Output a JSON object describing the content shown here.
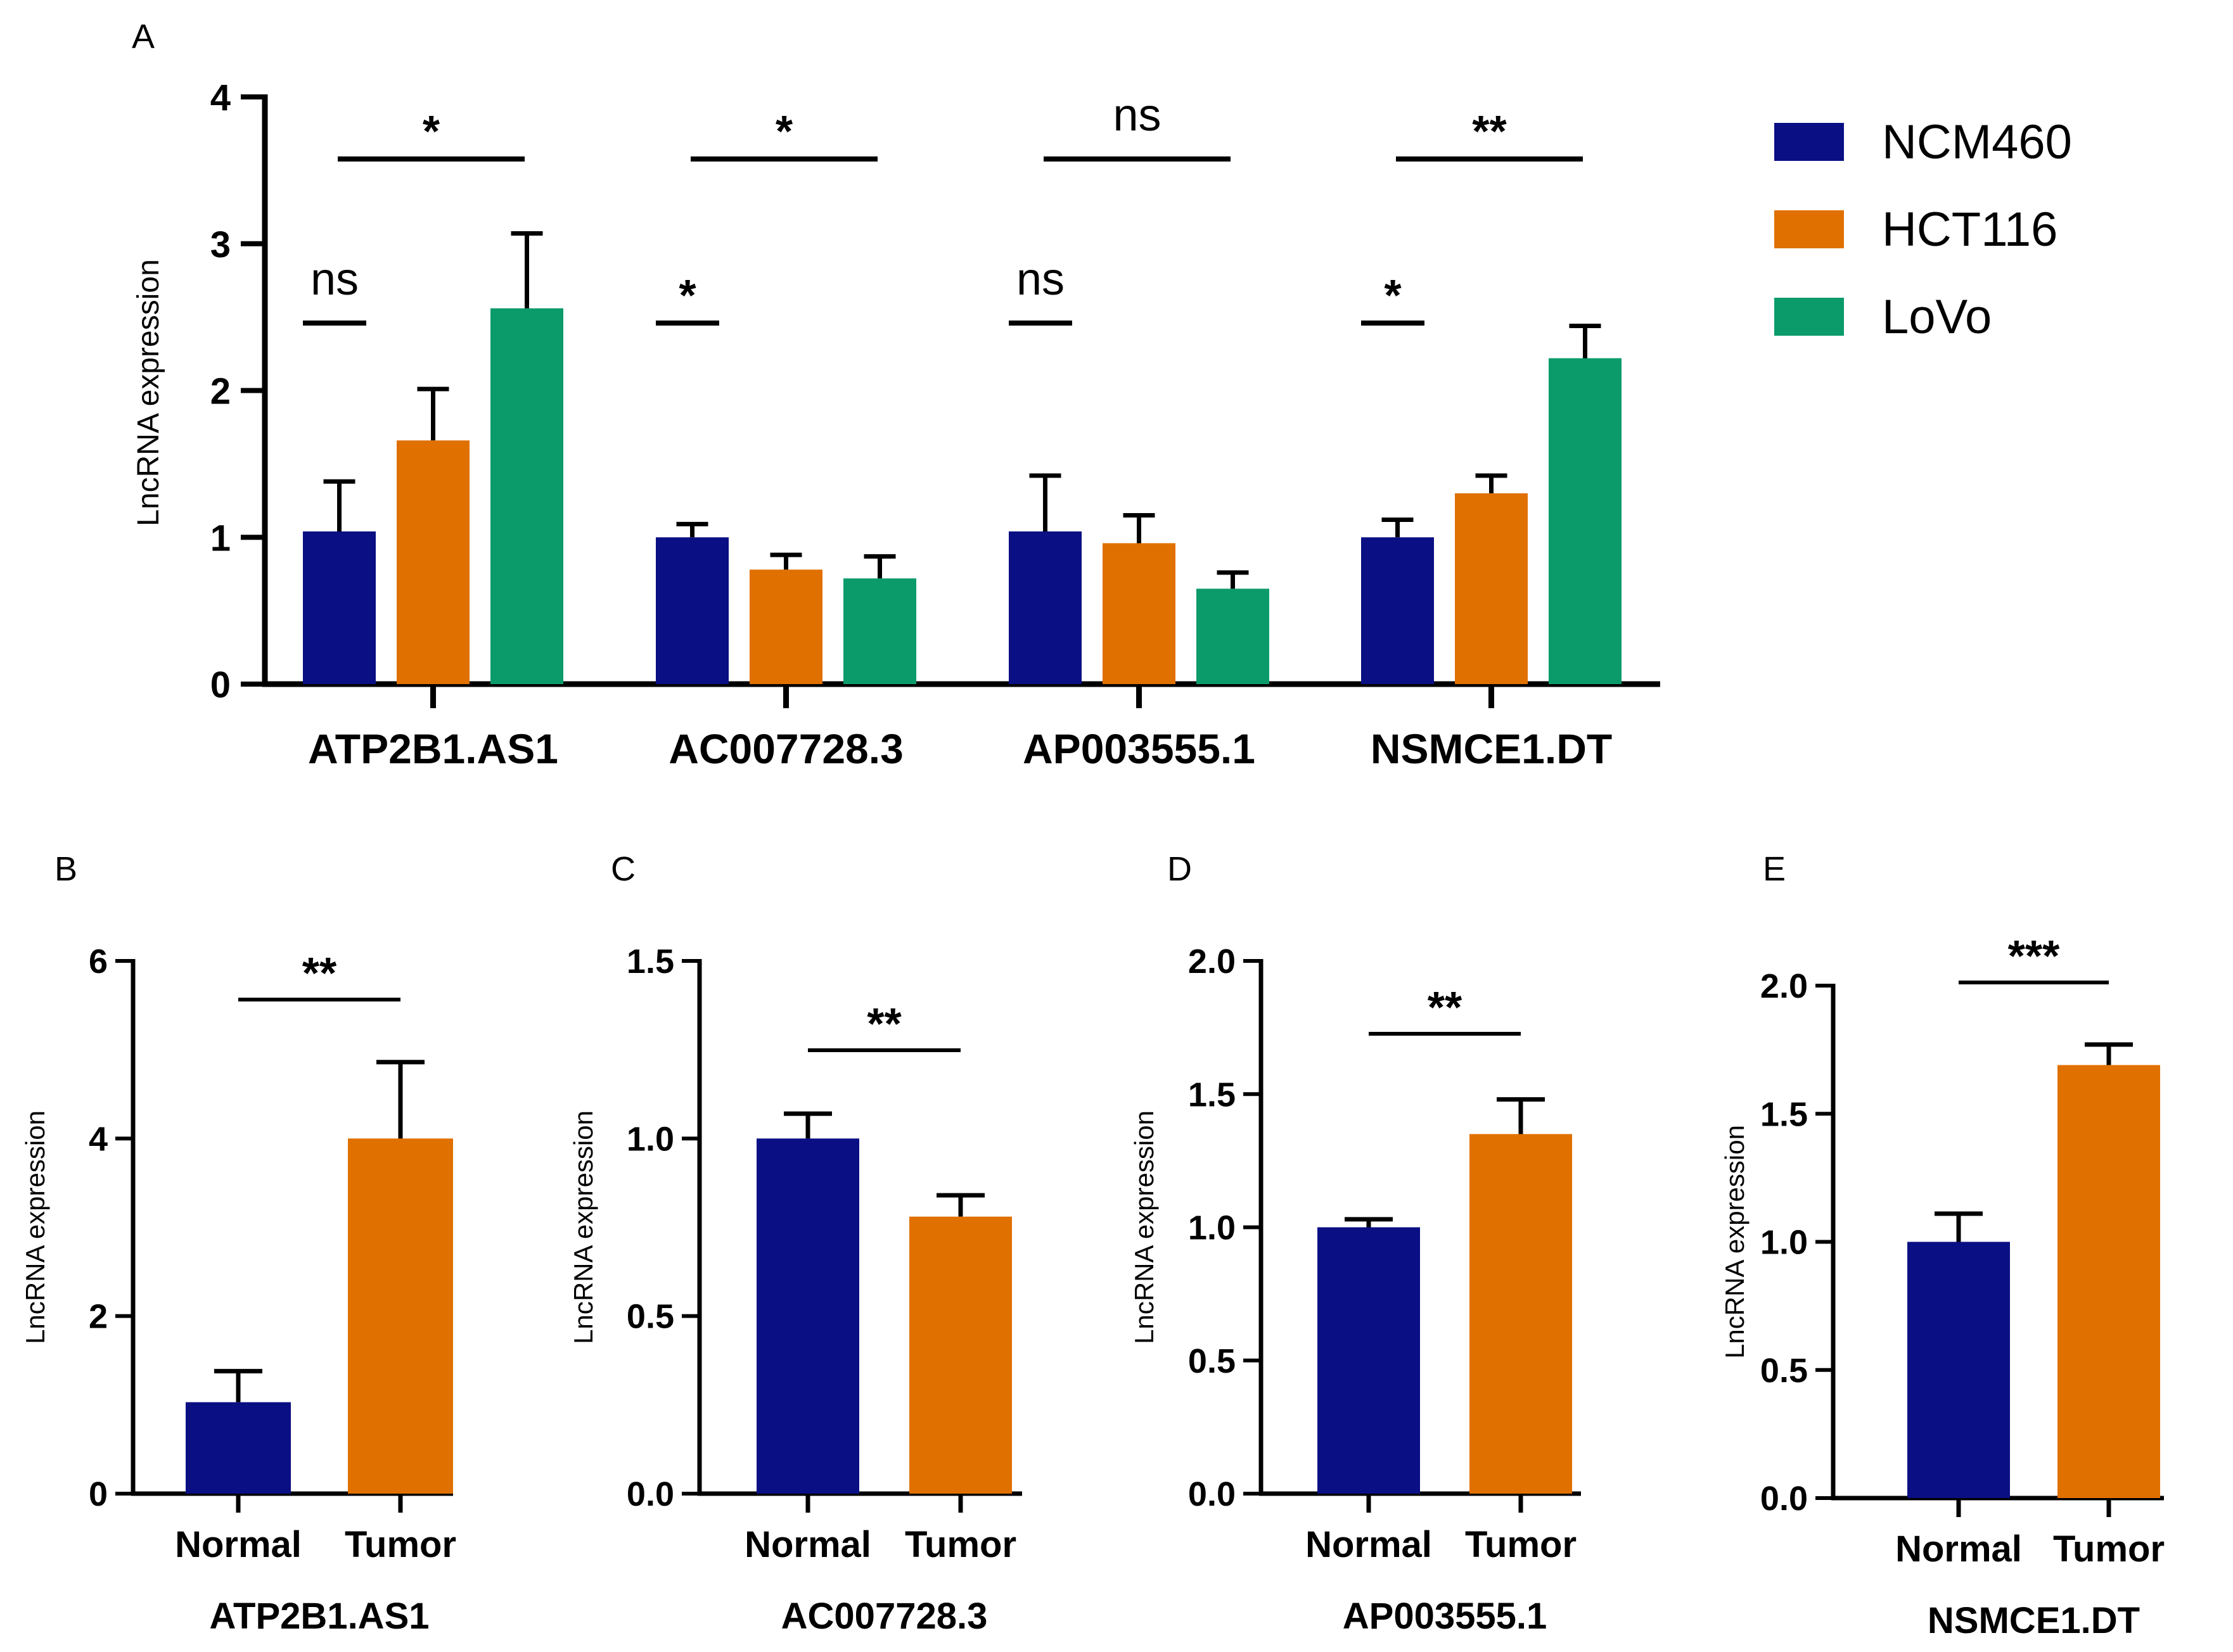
{
  "colors": {
    "NCM460": "#0a0f84",
    "HCT116": "#e07000",
    "LoVo": "#0b9b6a",
    "Normal": "#0a0f84",
    "Tumor": "#e07000",
    "axis": "#000000"
  },
  "legend": [
    {
      "label": "NCM460",
      "color": "#0a0f84"
    },
    {
      "label": "HCT116",
      "color": "#e07000"
    },
    {
      "label": "LoVo",
      "color": "#0b9b6a"
    }
  ],
  "chart_data": [
    {
      "panel": "A",
      "type": "bar",
      "ylabel": "LncRNA expression",
      "ylim": [
        0,
        4
      ],
      "yticks": [
        "0",
        "1",
        "2",
        "3",
        "4"
      ],
      "categories": [
        "ATP2B1.AS1",
        "AC007728.3",
        "AP003555.1",
        "NSMCE1.DT"
      ],
      "series": [
        {
          "name": "NCM460",
          "values": [
            1.04,
            1.0,
            1.04,
            1.0
          ],
          "errors": [
            0.34,
            0.09,
            0.38,
            0.12
          ]
        },
        {
          "name": "HCT116",
          "values": [
            1.66,
            0.78,
            0.96,
            1.3
          ],
          "errors": [
            0.35,
            0.1,
            0.19,
            0.12
          ]
        },
        {
          "name": "LoVo",
          "values": [
            2.56,
            0.72,
            0.65,
            2.22
          ],
          "errors": [
            0.51,
            0.15,
            0.11,
            0.22
          ]
        }
      ],
      "significance": [
        {
          "group": "ATP2B1.AS1",
          "pair": "NCM460-HCT116",
          "label": "ns"
        },
        {
          "group": "ATP2B1.AS1",
          "pair": "HCT116-LoVo",
          "label": "*"
        },
        {
          "group": "AC007728.3",
          "pair": "NCM460-HCT116",
          "label": "*"
        },
        {
          "group": "AC007728.3",
          "pair": "HCT116-LoVo",
          "label": "*"
        },
        {
          "group": "AP003555.1",
          "pair": "NCM460-HCT116",
          "label": "ns"
        },
        {
          "group": "AP003555.1",
          "pair": "HCT116-LoVo",
          "label": "ns"
        },
        {
          "group": "NSMCE1.DT",
          "pair": "NCM460-HCT116",
          "label": "*"
        },
        {
          "group": "NSMCE1.DT",
          "pair": "HCT116-LoVo",
          "label": "**"
        }
      ]
    },
    {
      "panel": "B",
      "type": "bar",
      "title": "ATP2B1.AS1",
      "ylabel": "LncRNA expression",
      "ylim": [
        0,
        6
      ],
      "yticks": [
        "0",
        "2",
        "4",
        "6"
      ],
      "categories": [
        "Normal",
        "Tumor"
      ],
      "values": [
        1.03,
        4.0
      ],
      "errors": [
        0.35,
        0.86
      ],
      "significance": "**"
    },
    {
      "panel": "C",
      "type": "bar",
      "title": "AC007728.3",
      "ylabel": "LncRNA expression",
      "ylim": [
        0,
        1.5
      ],
      "yticks": [
        "0.0",
        "0.5",
        "1.0",
        "1.5"
      ],
      "categories": [
        "Normal",
        "Tumor"
      ],
      "values": [
        1.0,
        0.78
      ],
      "errors": [
        0.07,
        0.06
      ],
      "significance": "**"
    },
    {
      "panel": "D",
      "type": "bar",
      "title": "AP003555.1",
      "ylabel": "LncRNA expression",
      "ylim": [
        0,
        2.0
      ],
      "yticks": [
        "0.0",
        "0.5",
        "1.0",
        "1.5",
        "2.0"
      ],
      "categories": [
        "Normal",
        "Tumor"
      ],
      "values": [
        1.0,
        1.35
      ],
      "errors": [
        0.03,
        0.13
      ],
      "significance": "**"
    },
    {
      "panel": "E",
      "type": "bar",
      "title": "NSMCE1.DT",
      "ylabel": "LncRNA expression",
      "ylim": [
        0,
        2.0
      ],
      "yticks": [
        "0.0",
        "0.5",
        "1.0",
        "1.5",
        "2.0"
      ],
      "categories": [
        "Normal",
        "Tumor"
      ],
      "values": [
        1.0,
        1.69
      ],
      "errors": [
        0.11,
        0.08
      ],
      "significance": "***"
    }
  ]
}
